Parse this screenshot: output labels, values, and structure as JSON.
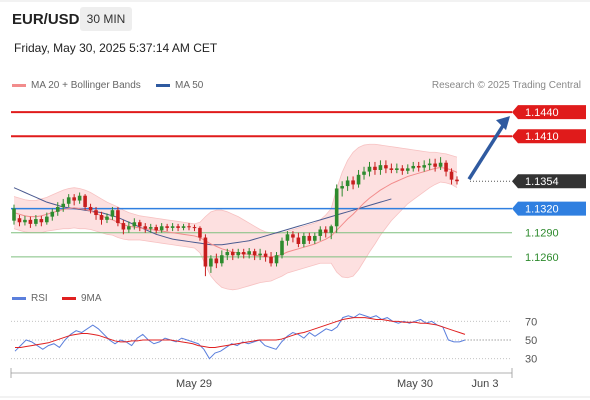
{
  "header": {
    "symbol": "EUR/USD",
    "timeframe": "30 MIN",
    "datetime": "Friday, May 30, 2025 5:37:14 AM CET"
  },
  "legend": {
    "items": [
      {
        "label": "MA 20 + Bollinger Bands",
        "color": "#f28c8c"
      },
      {
        "label": "MA 50",
        "color": "#2f5aa0"
      }
    ],
    "rsi_items": [
      {
        "label": "RSI",
        "color": "#5b7fdc"
      },
      {
        "label": "9MA",
        "color": "#e02020"
      }
    ]
  },
  "credit": "Research © 2025 Trading Central",
  "colors": {
    "resistance": "#e01b1b",
    "support_line": "#7fbf7f",
    "support_text": "#2e8b2e",
    "current": "#333333",
    "pivot": "#2f7fe0",
    "ma50": "#4a5a90",
    "ma20": "#f28c8c",
    "bands_fill": "#fde0e0",
    "bull": "#2e8b2e",
    "bear": "#c81e1e",
    "arrow": "#2f5aa0"
  },
  "chart_data": [
    {
      "type": "candlestick",
      "title": "EUR/USD 30 MIN",
      "y_range": [
        1.1225,
        1.1455
      ],
      "levels": [
        {
          "value": 1.144,
          "label": "1.1440",
          "kind": "resistance"
        },
        {
          "value": 1.141,
          "label": "1.1410",
          "kind": "resistance"
        },
        {
          "value": 1.1354,
          "label": "1.1354",
          "kind": "current"
        },
        {
          "value": 1.132,
          "label": "1.1320",
          "kind": "pivot"
        },
        {
          "value": 1.129,
          "label": "1.1290",
          "kind": "support"
        },
        {
          "value": 1.126,
          "label": "1.1260",
          "kind": "support"
        }
      ],
      "x_labels": [
        "May 29",
        "May 30",
        "Jun 3"
      ],
      "candles": [
        [
          1.1305,
          1.132,
          1.13,
          1.1325
        ],
        [
          1.1308,
          1.1303,
          1.1298,
          1.1312
        ],
        [
          1.1303,
          1.1306,
          1.1299,
          1.1311
        ],
        [
          1.1306,
          1.1301,
          1.1296,
          1.131
        ],
        [
          1.1301,
          1.1307,
          1.1298,
          1.1312
        ],
        [
          1.1307,
          1.1303,
          1.1298,
          1.1311
        ],
        [
          1.1303,
          1.131,
          1.13,
          1.1315
        ],
        [
          1.131,
          1.1316,
          1.1305,
          1.132
        ],
        [
          1.1316,
          1.1322,
          1.1311,
          1.1328
        ],
        [
          1.1322,
          1.1326,
          1.1316,
          1.1332
        ],
        [
          1.1326,
          1.1334,
          1.1322,
          1.1338
        ],
        [
          1.1334,
          1.133,
          1.1324,
          1.1338
        ],
        [
          1.133,
          1.1336,
          1.1326,
          1.134
        ],
        [
          1.1336,
          1.1322,
          1.1318,
          1.1338
        ],
        [
          1.1322,
          1.1318,
          1.1314,
          1.1326
        ],
        [
          1.1318,
          1.1312,
          1.1306,
          1.1322
        ],
        [
          1.1312,
          1.1306,
          1.13,
          1.1316
        ],
        [
          1.1306,
          1.131,
          1.1302,
          1.1314
        ],
        [
          1.131,
          1.1318,
          1.1306,
          1.1322
        ],
        [
          1.1318,
          1.1302,
          1.1298,
          1.1322
        ],
        [
          1.1302,
          1.1294,
          1.1288,
          1.1306
        ],
        [
          1.1294,
          1.1298,
          1.129,
          1.1304
        ],
        [
          1.1298,
          1.1303,
          1.1294,
          1.1308
        ],
        [
          1.1303,
          1.1298,
          1.1292,
          1.1306
        ],
        [
          1.1298,
          1.1295,
          1.129,
          1.1302
        ],
        [
          1.1295,
          1.1297,
          1.129,
          1.1301
        ],
        [
          1.1297,
          1.1293,
          1.1289,
          1.13
        ],
        [
          1.1293,
          1.1298,
          1.129,
          1.1302
        ],
        [
          1.1298,
          1.1296,
          1.1292,
          1.1301
        ],
        [
          1.1296,
          1.1298,
          1.1292,
          1.1302
        ],
        [
          1.1298,
          1.1296,
          1.1292,
          1.1301
        ],
        [
          1.1296,
          1.1298,
          1.1293,
          1.1301
        ],
        [
          1.1298,
          1.1297,
          1.1293,
          1.1302
        ],
        [
          1.1297,
          1.1296,
          1.1292,
          1.13
        ],
        [
          1.1296,
          1.1284,
          1.128,
          1.1298
        ],
        [
          1.1284,
          1.1248,
          1.1236,
          1.1288
        ],
        [
          1.1248,
          1.1258,
          1.124,
          1.1262
        ],
        [
          1.1258,
          1.1252,
          1.1246,
          1.1264
        ],
        [
          1.1252,
          1.1262,
          1.1248,
          1.1268
        ],
        [
          1.1262,
          1.1266,
          1.1256,
          1.127
        ],
        [
          1.1266,
          1.1262,
          1.1256,
          1.127
        ],
        [
          1.1262,
          1.1266,
          1.1258,
          1.127
        ],
        [
          1.1266,
          1.1263,
          1.1258,
          1.127
        ],
        [
          1.1263,
          1.1267,
          1.1258,
          1.1271
        ],
        [
          1.1267,
          1.1262,
          1.1256,
          1.127
        ],
        [
          1.1262,
          1.1264,
          1.1256,
          1.127
        ],
        [
          1.1264,
          1.126,
          1.1254,
          1.1268
        ],
        [
          1.126,
          1.1252,
          1.1248,
          1.1266
        ],
        [
          1.1252,
          1.1262,
          1.1248,
          1.1266
        ],
        [
          1.1262,
          1.128,
          1.1258,
          1.1284
        ],
        [
          1.128,
          1.1288,
          1.1274,
          1.1292
        ],
        [
          1.1288,
          1.1284,
          1.1278,
          1.1292
        ],
        [
          1.1284,
          1.1276,
          1.1272,
          1.129
        ],
        [
          1.1276,
          1.1286,
          1.1272,
          1.129
        ],
        [
          1.1286,
          1.128,
          1.1276,
          1.129
        ],
        [
          1.128,
          1.1286,
          1.1276,
          1.129
        ],
        [
          1.1286,
          1.1294,
          1.128,
          1.1298
        ],
        [
          1.1294,
          1.129,
          1.1284,
          1.1298
        ],
        [
          1.129,
          1.1298,
          1.1282,
          1.13
        ],
        [
          1.1298,
          1.1345,
          1.129,
          1.135
        ],
        [
          1.1345,
          1.1348,
          1.1335,
          1.1354
        ],
        [
          1.1348,
          1.1355,
          1.1342,
          1.136
        ],
        [
          1.1355,
          1.135,
          1.1344,
          1.136
        ],
        [
          1.135,
          1.1362,
          1.1346,
          1.1368
        ],
        [
          1.1362,
          1.1366,
          1.1356,
          1.1372
        ],
        [
          1.1366,
          1.1372,
          1.136,
          1.1378
        ],
        [
          1.1372,
          1.1368,
          1.1362,
          1.1378
        ],
        [
          1.1368,
          1.1374,
          1.1362,
          1.138
        ],
        [
          1.1374,
          1.137,
          1.1364,
          1.138
        ],
        [
          1.137,
          1.1368,
          1.1364,
          1.1376
        ],
        [
          1.1368,
          1.137,
          1.1364,
          1.1376
        ],
        [
          1.137,
          1.1367,
          1.1362,
          1.1374
        ],
        [
          1.1367,
          1.137,
          1.1363,
          1.1375
        ],
        [
          1.137,
          1.1373,
          1.1366,
          1.1378
        ],
        [
          1.1373,
          1.1371,
          1.1366,
          1.1378
        ],
        [
          1.1371,
          1.1374,
          1.1366,
          1.138
        ],
        [
          1.1374,
          1.1376,
          1.1368,
          1.1382
        ],
        [
          1.1376,
          1.1372,
          1.1366,
          1.1382
        ],
        [
          1.1372,
          1.1377,
          1.1368,
          1.1384
        ],
        [
          1.1377,
          1.1366,
          1.136,
          1.138
        ],
        [
          1.1366,
          1.1356,
          1.135,
          1.137
        ],
        [
          1.1356,
          1.1354,
          1.135,
          1.136
        ]
      ],
      "ma20": [
        1.1315,
        1.1313,
        1.1311,
        1.131,
        1.131,
        1.1311,
        1.1313,
        1.1315,
        1.1317,
        1.1319,
        1.132,
        1.1321,
        1.132,
        1.1319,
        1.1317,
        1.1314,
        1.1311,
        1.1308,
        1.1306,
        1.1303,
        1.13,
        1.1298,
        1.1297,
        1.1296,
        1.1295,
        1.1294,
        1.1293,
        1.1292,
        1.1291,
        1.129,
        1.1289,
        1.1288,
        1.1287,
        1.1286,
        1.1284,
        1.128,
        1.1276,
        1.1273,
        1.127,
        1.1268,
        1.1266,
        1.1265,
        1.1264,
        1.1263,
        1.1262,
        1.1261,
        1.126,
        1.126,
        1.1261,
        1.1263,
        1.1266,
        1.1268,
        1.127,
        1.1272,
        1.1274,
        1.1276,
        1.1279,
        1.1282,
        1.1286,
        1.1293,
        1.13,
        1.1307,
        1.1313,
        1.132,
        1.1327,
        1.1333,
        1.1338,
        1.1343,
        1.1347,
        1.1351,
        1.1354,
        1.1357,
        1.136,
        1.1362,
        1.1364,
        1.1366,
        1.1368,
        1.137,
        1.1371,
        1.137,
        1.1368,
        1.1365
      ],
      "bb_upper": [
        1.1335,
        1.1333,
        1.1331,
        1.133,
        1.133,
        1.1332,
        1.1334,
        1.1337,
        1.134,
        1.1343,
        1.1345,
        1.1346,
        1.1345,
        1.1343,
        1.134,
        1.1336,
        1.1332,
        1.1328,
        1.1325,
        1.1322,
        1.1318,
        1.1315,
        1.1313,
        1.1311,
        1.131,
        1.1309,
        1.1308,
        1.1307,
        1.1306,
        1.1305,
        1.1304,
        1.1303,
        1.1302,
        1.1301,
        1.1303,
        1.131,
        1.1316,
        1.1318,
        1.1318,
        1.1316,
        1.1313,
        1.131,
        1.1306,
        1.1302,
        1.1298,
        1.1294,
        1.1291,
        1.129,
        1.1289,
        1.129,
        1.1292,
        1.1294,
        1.1296,
        1.1298,
        1.13,
        1.1302,
        1.1306,
        1.1312,
        1.132,
        1.1345,
        1.1365,
        1.138,
        1.139,
        1.1396,
        1.1399,
        1.14,
        1.14,
        1.1399,
        1.1398,
        1.1397,
        1.1396,
        1.1395,
        1.1394,
        1.1393,
        1.1392,
        1.1391,
        1.139,
        1.139,
        1.1389,
        1.1388,
        1.1386,
        1.1384
      ],
      "bb_lower": [
        1.1295,
        1.1293,
        1.1291,
        1.129,
        1.129,
        1.129,
        1.1292,
        1.1293,
        1.1294,
        1.1295,
        1.1295,
        1.1296,
        1.1295,
        1.1295,
        1.1294,
        1.1292,
        1.129,
        1.1288,
        1.1287,
        1.1284,
        1.1282,
        1.1281,
        1.1281,
        1.1281,
        1.128,
        1.1279,
        1.1278,
        1.1277,
        1.1276,
        1.1275,
        1.1274,
        1.1273,
        1.1272,
        1.1271,
        1.1265,
        1.125,
        1.1236,
        1.1228,
        1.1222,
        1.122,
        1.1219,
        1.122,
        1.1222,
        1.1224,
        1.1226,
        1.1228,
        1.1229,
        1.123,
        1.1233,
        1.1236,
        1.124,
        1.1242,
        1.1244,
        1.1246,
        1.1248,
        1.125,
        1.1252,
        1.1252,
        1.1252,
        1.1241,
        1.1235,
        1.1234,
        1.1236,
        1.1244,
        1.1255,
        1.1266,
        1.1276,
        1.1287,
        1.1296,
        1.1305,
        1.1312,
        1.1319,
        1.1326,
        1.1331,
        1.1336,
        1.1341,
        1.1346,
        1.135,
        1.1353,
        1.1352,
        1.135,
        1.1346
      ],
      "ma50": [
        1.1346,
        1.1343,
        1.134,
        1.1337,
        1.1334,
        1.1331,
        1.1328,
        1.1326,
        1.1324,
        1.1322,
        1.1321,
        1.132,
        1.1319,
        1.1318,
        1.1317,
        1.1316,
        1.1315,
        1.1313,
        1.1311,
        1.1309,
        1.1306,
        1.1303,
        1.13,
        1.1297,
        1.1294,
        1.1291,
        1.1288,
        1.1286,
        1.1284,
        1.1282,
        1.1281,
        1.128,
        1.1279,
        1.1278,
        1.1277,
        1.1276,
        1.1275,
        1.1275,
        1.1275,
        1.1276,
        1.1277,
        1.1278,
        1.1279,
        1.128,
        1.1282,
        1.1284,
        1.1286,
        1.1288,
        1.129,
        1.1292,
        1.1294,
        1.1296,
        1.1298,
        1.13,
        1.1302,
        1.1304,
        1.1306,
        1.1308,
        1.131,
        1.1312,
        1.1314,
        1.1316,
        1.1318,
        1.132,
        1.1322,
        1.1324,
        1.1326,
        1.1328,
        1.133,
        1.1332
      ]
    },
    {
      "type": "line",
      "title": "RSI",
      "y_range": [
        20,
        80
      ],
      "y_ticks": [
        70,
        50,
        30
      ],
      "series": [
        {
          "name": "RSI",
          "values": [
            38,
            44,
            50,
            48,
            44,
            40,
            44,
            46,
            42,
            50,
            56,
            60,
            58,
            62,
            66,
            62,
            56,
            50,
            46,
            50,
            48,
            44,
            52,
            56,
            50,
            46,
            48,
            52,
            50,
            48,
            52,
            50,
            48,
            46,
            40,
            30,
            36,
            38,
            42,
            46,
            44,
            48,
            46,
            48,
            50,
            44,
            42,
            40,
            48,
            54,
            58,
            56,
            52,
            58,
            54,
            58,
            62,
            60,
            64,
            74,
            76,
            74,
            78,
            76,
            74,
            76,
            72,
            74,
            70,
            68,
            70,
            68,
            70,
            72,
            68,
            70,
            66,
            64,
            50,
            48,
            48,
            50
          ]
        },
        {
          "name": "9MA",
          "values": [
            42,
            42,
            43,
            44,
            45,
            46,
            47,
            49,
            51,
            53,
            55,
            56,
            57,
            57,
            56,
            55,
            53,
            51,
            49,
            48,
            48,
            49,
            49,
            50,
            50,
            50,
            50,
            50,
            50,
            49,
            48,
            47,
            46,
            44,
            43,
            42,
            42,
            43,
            44,
            45,
            46,
            47,
            48,
            49,
            50,
            50,
            50,
            50,
            51,
            53,
            55,
            57,
            58,
            60,
            62,
            64,
            66,
            68,
            70,
            72,
            73,
            74,
            74,
            74,
            73,
            72,
            72,
            71,
            70,
            70,
            69,
            69,
            69,
            68,
            68,
            67,
            66,
            64,
            62,
            60,
            58,
            56
          ]
        }
      ]
    }
  ]
}
